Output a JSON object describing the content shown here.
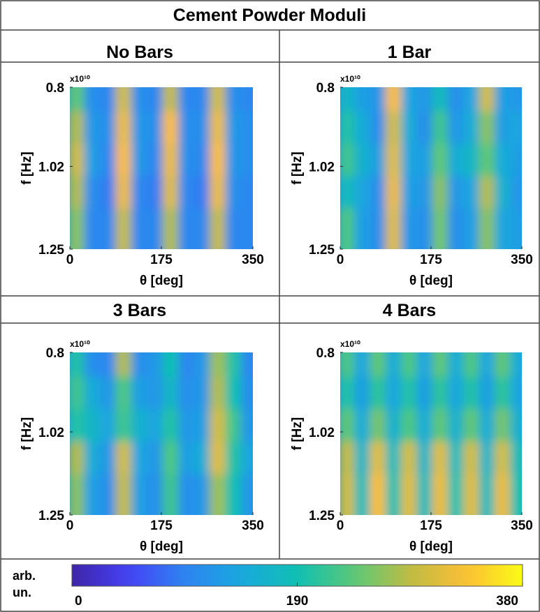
{
  "figure": {
    "title": "Cement Powder Moduli",
    "colorbar": {
      "label": "arb. un.",
      "lim": [
        0,
        380
      ],
      "ticks": [
        0,
        190,
        380
      ],
      "colormap": "parula"
    }
  },
  "chart_data": [
    {
      "type": "heatmap",
      "title": "No Bars",
      "xlabel": "θ [deg]",
      "ylabel": "f [Hz]",
      "y_multiplier": "x10¹⁰",
      "x": [
        15,
        45,
        75,
        105,
        135,
        165,
        195,
        225,
        255,
        285,
        315,
        345
      ],
      "y": [
        0.845,
        0.935,
        1.025,
        1.115,
        1.205
      ],
      "values": [
        [
          240,
          110,
          100,
          300,
          110,
          100,
          290,
          100,
          100,
          300,
          110,
          100
        ],
        [
          280,
          120,
          110,
          320,
          120,
          110,
          330,
          110,
          110,
          320,
          120,
          110
        ],
        [
          300,
          130,
          100,
          330,
          120,
          100,
          320,
          110,
          100,
          330,
          120,
          110
        ],
        [
          280,
          110,
          90,
          320,
          100,
          90,
          310,
          100,
          90,
          320,
          110,
          100
        ],
        [
          260,
          100,
          100,
          290,
          100,
          100,
          280,
          100,
          100,
          290,
          100,
          100
        ]
      ],
      "xlim": [
        0,
        350
      ],
      "ylim": [
        0.8,
        1.25
      ],
      "xticks": [
        0,
        175,
        350
      ],
      "yticks": [
        0.8,
        1.02,
        1.25
      ],
      "colormap": "parula",
      "zlim": [
        0,
        380
      ]
    },
    {
      "type": "heatmap",
      "title": "1 Bar",
      "xlabel": "θ [deg]",
      "ylabel": "f [Hz]",
      "y_multiplier": "x10¹⁰",
      "x": [
        15,
        45,
        75,
        105,
        135,
        165,
        195,
        225,
        255,
        285,
        315,
        345
      ],
      "y": [
        0.845,
        0.935,
        1.025,
        1.115,
        1.205
      ],
      "values": [
        [
          170,
          130,
          120,
          330,
          140,
          120,
          180,
          110,
          140,
          300,
          130,
          120
        ],
        [
          200,
          150,
          110,
          300,
          150,
          110,
          220,
          120,
          150,
          260,
          130,
          140
        ],
        [
          220,
          160,
          130,
          310,
          140,
          130,
          240,
          150,
          170,
          240,
          150,
          130
        ],
        [
          180,
          140,
          110,
          320,
          130,
          120,
          260,
          120,
          140,
          280,
          160,
          120
        ],
        [
          230,
          130,
          110,
          310,
          120,
          110,
          250,
          110,
          130,
          260,
          140,
          130
        ]
      ],
      "xlim": [
        0,
        350
      ],
      "ylim": [
        0.8,
        1.25
      ],
      "xticks": [
        0,
        175,
        350
      ],
      "yticks": [
        0.8,
        1.02,
        1.25
      ],
      "colormap": "parula",
      "zlim": [
        0,
        380
      ]
    },
    {
      "type": "heatmap",
      "title": "3 Bars",
      "xlabel": "θ [deg]",
      "ylabel": "f [Hz]",
      "y_multiplier": "x10¹⁰",
      "x": [
        15,
        45,
        75,
        105,
        135,
        165,
        195,
        225,
        255,
        285,
        315,
        345
      ],
      "y": [
        0.845,
        0.935,
        1.025,
        1.115,
        1.205
      ],
      "values": [
        [
          200,
          110,
          100,
          280,
          110,
          120,
          190,
          100,
          120,
          270,
          200,
          100
        ],
        [
          220,
          150,
          120,
          230,
          130,
          120,
          170,
          110,
          120,
          280,
          190,
          110
        ],
        [
          200,
          170,
          140,
          220,
          160,
          140,
          200,
          120,
          130,
          300,
          220,
          120
        ],
        [
          280,
          150,
          120,
          300,
          140,
          120,
          230,
          130,
          150,
          310,
          200,
          140
        ],
        [
          260,
          130,
          110,
          290,
          130,
          110,
          220,
          110,
          120,
          270,
          190,
          120
        ]
      ],
      "xlim": [
        0,
        350
      ],
      "ylim": [
        0.8,
        1.25
      ],
      "xticks": [
        0,
        175,
        350
      ],
      "yticks": [
        0.8,
        1.02,
        1.25
      ],
      "colormap": "parula",
      "zlim": [
        0,
        380
      ]
    },
    {
      "type": "heatmap",
      "title": "4 Bars",
      "xlabel": "θ [deg]",
      "ylabel": "f [Hz]",
      "y_multiplier": "x10¹⁰",
      "x": [
        15,
        45,
        75,
        105,
        135,
        165,
        195,
        225,
        255,
        285,
        315,
        345
      ],
      "y": [
        0.845,
        0.935,
        1.025,
        1.115,
        1.205
      ],
      "values": [
        [
          230,
          140,
          240,
          150,
          230,
          140,
          240,
          150,
          230,
          140,
          240,
          150
        ],
        [
          200,
          130,
          210,
          140,
          200,
          130,
          210,
          140,
          200,
          130,
          210,
          140
        ],
        [
          240,
          150,
          250,
          160,
          230,
          150,
          240,
          160,
          240,
          150,
          250,
          160
        ],
        [
          290,
          170,
          310,
          180,
          300,
          170,
          310,
          180,
          300,
          170,
          300,
          180
        ],
        [
          300,
          180,
          330,
          190,
          310,
          180,
          320,
          190,
          310,
          180,
          320,
          190
        ]
      ],
      "xlim": [
        0,
        350
      ],
      "ylim": [
        0.8,
        1.25
      ],
      "xticks": [
        0,
        175,
        350
      ],
      "yticks": [
        0.8,
        1.02,
        1.25
      ],
      "colormap": "parula",
      "zlim": [
        0,
        380
      ]
    }
  ]
}
